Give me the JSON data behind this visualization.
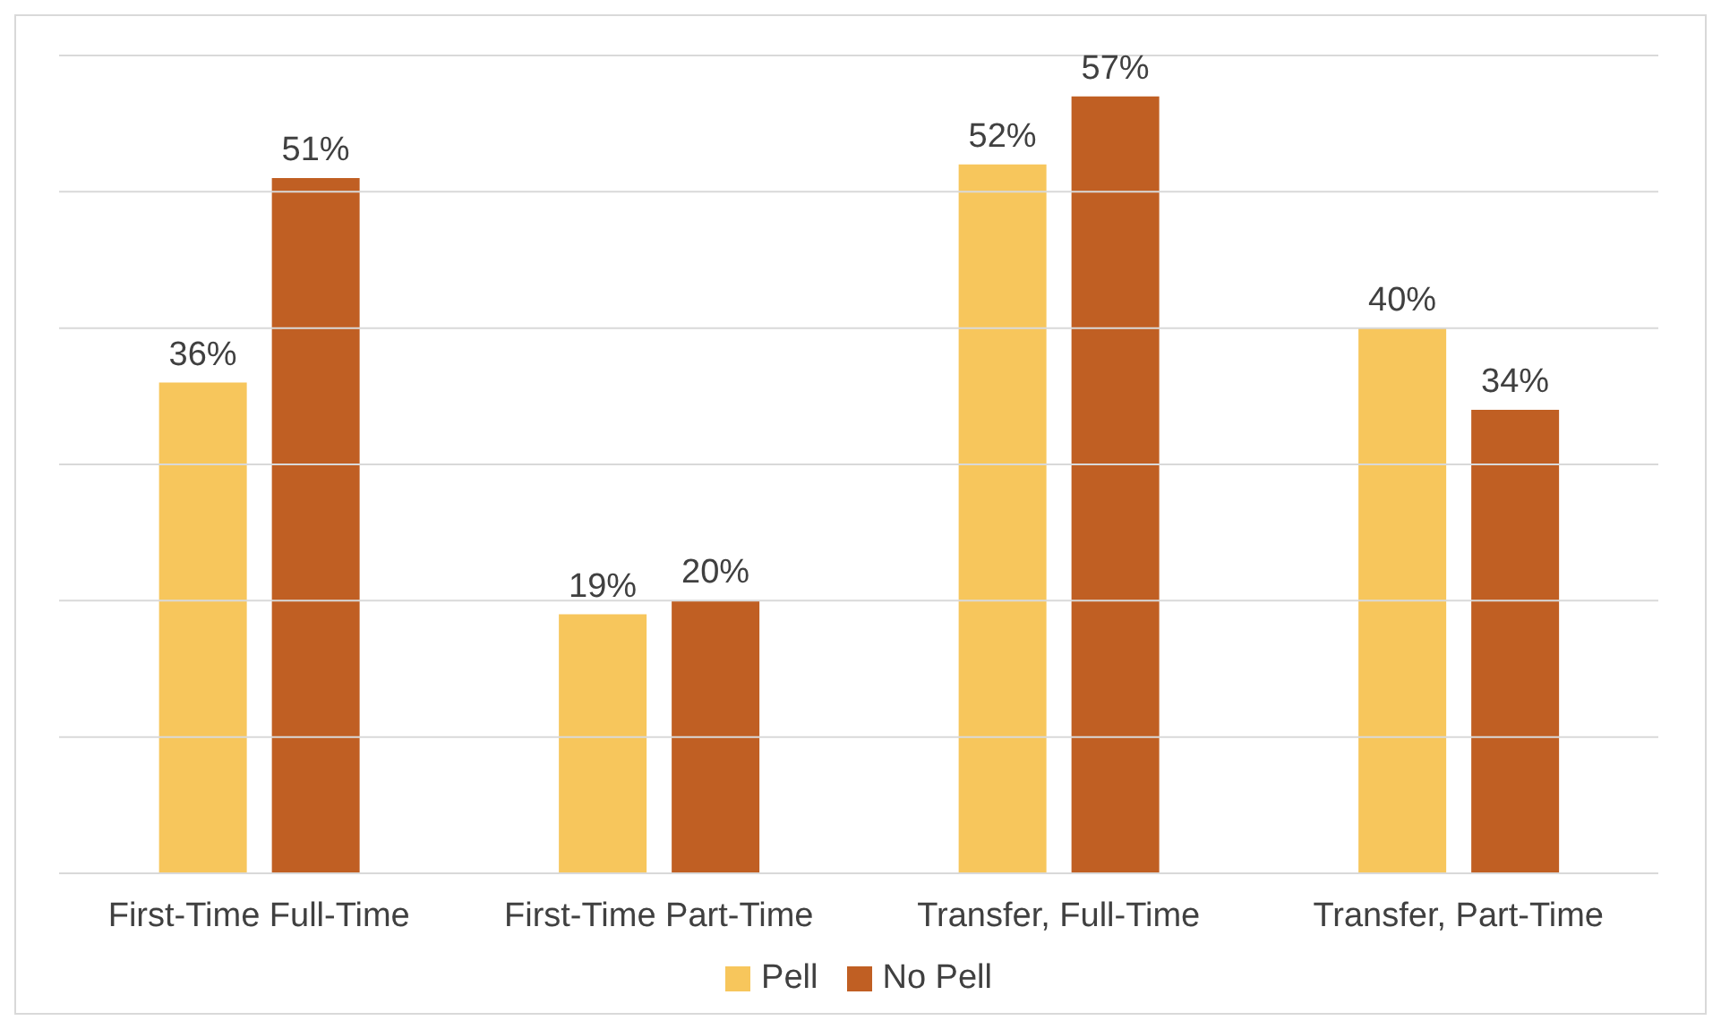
{
  "chart_data": {
    "type": "bar",
    "categories": [
      "First-Time Full-Time",
      "First-Time Part-Time",
      "Transfer, Full-Time",
      "Transfer, Part-Time"
    ],
    "series": [
      {
        "name": "Pell",
        "color": "#f7c65c",
        "values": [
          36,
          19,
          52,
          40
        ],
        "value_labels": [
          "36%",
          "19%",
          "52%",
          "40%"
        ]
      },
      {
        "name": "No Pell",
        "color": "#c05f23",
        "values": [
          51,
          20,
          57,
          34
        ],
        "value_labels": [
          "51%",
          "20%",
          "57%",
          "34%"
        ]
      }
    ],
    "ylim": [
      0,
      60
    ],
    "yticks": [
      {
        "value": 0,
        "label": null
      },
      {
        "value": 10,
        "label": null
      },
      {
        "value": 20,
        "label": null
      },
      {
        "value": 30,
        "label": null
      },
      {
        "value": 40,
        "label": null
      },
      {
        "value": 50,
        "label": null
      },
      {
        "value": 60,
        "label": null
      }
    ],
    "grid": "y",
    "legend": "bottom",
    "tick_labels": "x"
  }
}
